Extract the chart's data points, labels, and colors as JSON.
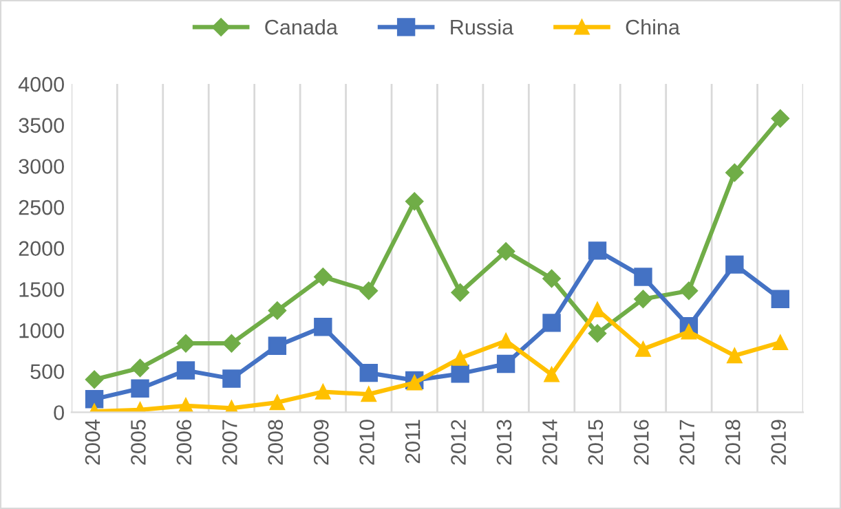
{
  "chart_data": {
    "type": "line",
    "categories": [
      "2004",
      "2005",
      "2006",
      "2007",
      "2008",
      "2009",
      "2010",
      "2011",
      "2012",
      "2013",
      "2014",
      "2015",
      "2016",
      "2017",
      "2018",
      "2019"
    ],
    "series": [
      {
        "name": "Canada",
        "color": "#70ad47",
        "marker": "diamond",
        "values": [
          400,
          540,
          840,
          840,
          1240,
          1650,
          1480,
          2570,
          1460,
          1960,
          1630,
          960,
          1380,
          1480,
          2920,
          3580
        ]
      },
      {
        "name": "Russia",
        "color": "#4472c4",
        "marker": "square",
        "values": [
          160,
          290,
          510,
          410,
          810,
          1040,
          480,
          390,
          470,
          590,
          1090,
          1970,
          1650,
          1050,
          1800,
          1380
        ]
      },
      {
        "name": "China",
        "color": "#ffc000",
        "marker": "triangle",
        "values": [
          10,
          30,
          80,
          50,
          120,
          250,
          220,
          360,
          660,
          870,
          460,
          1250,
          770,
          980,
          690,
          850
        ]
      }
    ],
    "ylim": [
      0,
      4000
    ],
    "yticks": [
      0,
      500,
      1000,
      1500,
      2000,
      2500,
      3000,
      3500,
      4000
    ],
    "grid": "x",
    "legend": "top",
    "line_style": "solid"
  }
}
